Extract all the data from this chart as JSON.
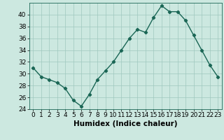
{
  "x": [
    0,
    1,
    2,
    3,
    4,
    5,
    6,
    7,
    8,
    9,
    10,
    11,
    12,
    13,
    14,
    15,
    16,
    17,
    18,
    19,
    20,
    21,
    22,
    23
  ],
  "y": [
    31,
    29.5,
    29,
    28.5,
    27.5,
    25.5,
    24.5,
    26.5,
    29,
    30.5,
    32,
    34,
    36,
    37.5,
    37,
    39.5,
    41.5,
    40.5,
    40.5,
    39,
    36.5,
    34,
    31.5,
    29.5
  ],
  "line_color": "#1a6655",
  "marker": "D",
  "marker_size": 2.2,
  "bg_color": "#cce8e0",
  "grid_color": "#9fc8be",
  "xlabel": "Humidex (Indice chaleur)",
  "xlabel_fontsize": 7.5,
  "xlabel_weight": "bold",
  "ylim": [
    24,
    42
  ],
  "xlim": [
    -0.5,
    23.5
  ],
  "yticks": [
    24,
    26,
    28,
    30,
    32,
    34,
    36,
    38,
    40
  ],
  "xtick_labels": [
    "0",
    "1",
    "2",
    "3",
    "4",
    "5",
    "6",
    "7",
    "8",
    "9",
    "10",
    "11",
    "12",
    "13",
    "14",
    "15",
    "16",
    "17",
    "18",
    "19",
    "20",
    "21",
    "22",
    "23"
  ],
  "tick_fontsize": 6.5,
  "line_width": 1.0
}
